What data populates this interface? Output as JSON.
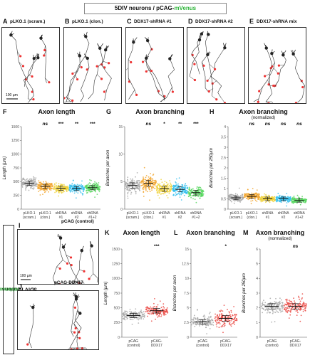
{
  "header": {
    "title_prefix": "5DIV neurons / pCAG-",
    "title_green": "mVenus"
  },
  "top_images": [
    {
      "letter": "A",
      "title": "pLKO.1 (scram.)"
    },
    {
      "letter": "B",
      "title": "pLKO.1 (clon.)"
    },
    {
      "letter": "C",
      "title": "DDX17-shRNA #1"
    },
    {
      "letter": "D",
      "title": "DDX17-shRNA #2"
    },
    {
      "letter": "E",
      "title": "DDX17-shRNA mix"
    }
  ],
  "scale_bar_top": "100 µm",
  "side_label": {
    "prefix": "5DIV neurons / pCAG-",
    "green": "mVenus"
  },
  "bottom_images": [
    {
      "letter": "I",
      "title": "pCAG (control)"
    },
    {
      "letter": "J",
      "title": "pCAG-DDX17"
    }
  ],
  "scale_bar_bottom": "100 µm",
  "colors": {
    "gray": "#a9a9a9",
    "orange": "#f2a62f",
    "yellow": "#f0d23c",
    "cyan": "#37c1ee",
    "green": "#58d760",
    "red": "#ea4a44",
    "accent_green": "#2fb53b"
  },
  "chart_data": [
    {
      "panel": "F",
      "type": "scatter",
      "title": "Axon length",
      "subtitle": "",
      "ylabel": "Length (µm)",
      "ylim": [
        0,
        1500
      ],
      "yticks": [
        "0",
        "250",
        "500",
        "750",
        "1000",
        "1250",
        "1500"
      ],
      "categories": [
        "pLKO.1\n(scram.)",
        "pLKO.1\n(clon.)",
        "shRNA\n#1",
        "shRNA\n#2",
        "shRNA\n#1+2"
      ],
      "means": [
        470,
        415,
        380,
        375,
        390
      ],
      "spread": [
        170,
        160,
        150,
        145,
        155
      ],
      "significance": [
        "",
        "ns",
        "***",
        "**",
        "***"
      ]
    },
    {
      "panel": "G",
      "type": "scatter",
      "title": "Axon branching",
      "subtitle": "",
      "ylabel": "Branches per axon",
      "ylim": [
        0,
        15
      ],
      "yticks": [
        "0",
        "5",
        "10",
        "15"
      ],
      "categories": [
        "pLKO.1\n(scram.)",
        "pLKO.1\n(clon.)",
        "shRNA\n#1",
        "shRNA\n#2",
        "shRNA\n#1+2"
      ],
      "means": [
        4.3,
        4.7,
        3.7,
        3.6,
        3.0
      ],
      "spread": [
        2.5,
        2.6,
        2.2,
        2.1,
        1.9
      ],
      "significance": [
        "",
        "ns",
        "*",
        "**",
        "***"
      ]
    },
    {
      "panel": "H",
      "type": "scatter",
      "title": "Axon branching",
      "subtitle": "(normalized)",
      "ylabel": "Branches per 250µm",
      "ylim": [
        0,
        4
      ],
      "yticks": [
        "0",
        "0.5",
        "1",
        "1.5",
        "2",
        "2.5",
        "3",
        "3.5",
        "4"
      ],
      "categories": [
        "pLKO.1\n(scram.)",
        "pLKO.1\n(clon.)",
        "shRNA\n#1",
        "shRNA\n#2",
        "shRNA\n#1+2"
      ],
      "means": [
        0.55,
        0.62,
        0.5,
        0.5,
        0.42
      ],
      "spread": [
        0.35,
        0.35,
        0.3,
        0.3,
        0.25
      ],
      "significance": [
        "",
        "ns",
        "ns",
        "ns",
        "ns"
      ]
    },
    {
      "panel": "K",
      "type": "scatter",
      "title": "Axon length",
      "subtitle": "",
      "ylabel": "Length (µm)",
      "ylim": [
        0,
        1500
      ],
      "yticks": [
        "0",
        "250",
        "500",
        "750",
        "1000",
        "1250",
        "1500"
      ],
      "categories": [
        "pCAG\n(control)",
        "pCAG-\nDDX17"
      ],
      "means": [
        370,
        450
      ],
      "spread": [
        150,
        170
      ],
      "significance": [
        "",
        "***"
      ]
    },
    {
      "panel": "L",
      "type": "scatter",
      "title": "Axon branching",
      "subtitle": "",
      "ylabel": "Branches per axon",
      "ylim": [
        0,
        15
      ],
      "yticks": [
        "0",
        "2.5",
        "5",
        "7.5",
        "10",
        "12.5",
        "15"
      ],
      "categories": [
        "pCAG\n(control)",
        "pCAG-\nDDX17"
      ],
      "means": [
        2.6,
        3.2
      ],
      "spread": [
        1.8,
        2.4
      ],
      "significance": [
        "",
        "*"
      ]
    },
    {
      "panel": "M",
      "type": "scatter",
      "title": "Axon branching",
      "subtitle": "(normalized)",
      "ylabel": "Branches per 250µm",
      "ylim": [
        0,
        6
      ],
      "yticks": [
        "0",
        "1",
        "2",
        "3",
        "4",
        "5",
        "6"
      ],
      "categories": [
        "pCAG\n(control)",
        "pCAG-\nDDX17"
      ],
      "means": [
        2.1,
        2.1
      ],
      "spread": [
        0.9,
        0.9
      ],
      "significance": [
        "",
        "ns"
      ]
    }
  ]
}
